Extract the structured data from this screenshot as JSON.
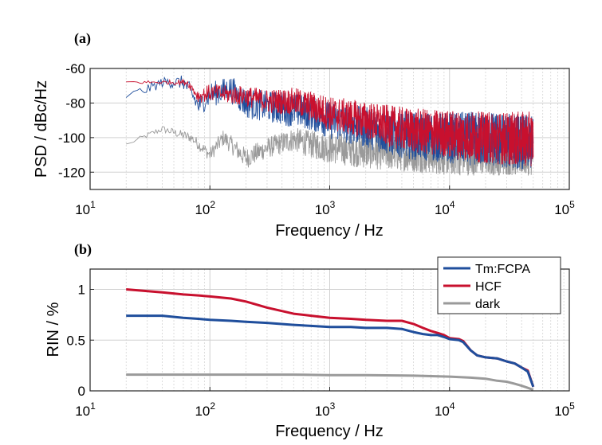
{
  "colors": {
    "tm_fcpa": "#1f4e9c",
    "hcf": "#c8102e",
    "dark": "#9a9a9a"
  },
  "chart_data": [
    {
      "panel": "(a)",
      "type": "line",
      "xscale": "log",
      "xlabel": "Frequency / Hz",
      "ylabel": "PSD / dBc/Hz",
      "xlim": [
        10,
        100000
      ],
      "ylim": [
        -130,
        -60
      ],
      "xticks": [
        {
          "base": "10",
          "exp": "1"
        },
        {
          "base": "10",
          "exp": "2"
        },
        {
          "base": "10",
          "exp": "3"
        },
        {
          "base": "10",
          "exp": "4"
        },
        {
          "base": "10",
          "exp": "5"
        }
      ],
      "yticks": [
        "-60",
        "-80",
        "-100",
        "-120"
      ],
      "grid": true,
      "x_range": [
        20,
        50000
      ],
      "series": [
        {
          "key": "tm_fcpa",
          "color_key": "tm_fcpa",
          "envelope": [
            [
              20,
              -76
            ],
            [
              30,
              -72
            ],
            [
              40,
              -68
            ],
            [
              60,
              -68
            ],
            [
              70,
              -74
            ],
            [
              80,
              -82
            ],
            [
              100,
              -75
            ],
            [
              150,
              -72
            ],
            [
              200,
              -80
            ],
            [
              300,
              -82
            ],
            [
              400,
              -83
            ],
            [
              500,
              -84
            ],
            [
              700,
              -86
            ],
            [
              1000,
              -90
            ],
            [
              2000,
              -94
            ],
            [
              3000,
              -97
            ],
            [
              5000,
              -99
            ],
            [
              10000,
              -100
            ],
            [
              20000,
              -101
            ],
            [
              50000,
              -103
            ]
          ],
          "spread": [
            2,
            3,
            3,
            4,
            5,
            6,
            7,
            8,
            9,
            9,
            10,
            10,
            10,
            11,
            12,
            13,
            14,
            15,
            16,
            16
          ]
        },
        {
          "key": "hcf",
          "color_key": "hcf",
          "envelope": [
            [
              20,
              -68
            ],
            [
              40,
              -68
            ],
            [
              65,
              -68
            ],
            [
              80,
              -76
            ],
            [
              100,
              -74
            ],
            [
              200,
              -76
            ],
            [
              300,
              -79
            ],
            [
              500,
              -79
            ],
            [
              700,
              -82
            ],
            [
              1000,
              -86
            ],
            [
              2000,
              -90
            ],
            [
              3000,
              -93
            ],
            [
              5000,
              -96
            ],
            [
              10000,
              -98
            ],
            [
              20000,
              -100
            ],
            [
              50000,
              -101
            ]
          ],
          "spread": [
            1,
            1,
            2,
            4,
            5,
            6,
            7,
            8,
            9,
            10,
            11,
            12,
            13,
            14,
            15,
            16
          ]
        },
        {
          "key": "dark",
          "color_key": "dark",
          "envelope": [
            [
              20,
              -104
            ],
            [
              40,
              -95
            ],
            [
              70,
              -100
            ],
            [
              100,
              -110
            ],
            [
              130,
              -100
            ],
            [
              200,
              -112
            ],
            [
              300,
              -106
            ],
            [
              500,
              -101
            ],
            [
              700,
              -104
            ],
            [
              1000,
              -106
            ],
            [
              2000,
              -108
            ],
            [
              5000,
              -109
            ],
            [
              10000,
              -110
            ],
            [
              20000,
              -110
            ],
            [
              50000,
              -110
            ]
          ],
          "spread": [
            1,
            2,
            3,
            4,
            5,
            6,
            6,
            7,
            8,
            9,
            10,
            11,
            12,
            12,
            12
          ]
        }
      ]
    },
    {
      "panel": "(b)",
      "type": "line",
      "xscale": "log",
      "xlabel": "Frequency / Hz",
      "ylabel": "RIN / %",
      "xlim": [
        10,
        100000
      ],
      "ylim": [
        0,
        1.2
      ],
      "xticks": [
        {
          "base": "10",
          "exp": "1"
        },
        {
          "base": "10",
          "exp": "2"
        },
        {
          "base": "10",
          "exp": "3"
        },
        {
          "base": "10",
          "exp": "4"
        },
        {
          "base": "10",
          "exp": "5"
        }
      ],
      "yticks": [
        "0",
        "0.5",
        "1"
      ],
      "ytick_values": [
        0,
        0.5,
        1
      ],
      "grid": true,
      "legend_position": "top-right",
      "series": [
        {
          "key": "tm_fcpa",
          "name": "Tm:FCPA",
          "color_key": "tm_fcpa",
          "x": [
            20,
            40,
            60,
            80,
            100,
            150,
            200,
            300,
            500,
            700,
            1000,
            1500,
            2000,
            3000,
            4000,
            5000,
            6000,
            7000,
            8000,
            9000,
            10000,
            12000,
            13000,
            15000,
            17000,
            20000,
            25000,
            30000,
            35000,
            40000,
            45000,
            50000
          ],
          "y": [
            0.74,
            0.74,
            0.72,
            0.71,
            0.7,
            0.69,
            0.68,
            0.67,
            0.65,
            0.64,
            0.63,
            0.63,
            0.62,
            0.62,
            0.61,
            0.58,
            0.56,
            0.55,
            0.55,
            0.53,
            0.51,
            0.5,
            0.48,
            0.4,
            0.35,
            0.33,
            0.32,
            0.29,
            0.27,
            0.23,
            0.19,
            0.04
          ]
        },
        {
          "key": "hcf",
          "name": "HCF",
          "color_key": "hcf",
          "x": [
            20,
            40,
            60,
            80,
            100,
            150,
            200,
            300,
            500,
            700,
            1000,
            1500,
            2000,
            3000,
            4000,
            5000,
            6000,
            7000,
            8000,
            9000,
            10000,
            12000,
            13000,
            15000,
            17000,
            20000,
            25000,
            30000,
            35000,
            40000,
            45000,
            50000
          ],
          "y": [
            1.0,
            0.97,
            0.95,
            0.94,
            0.93,
            0.91,
            0.88,
            0.82,
            0.76,
            0.74,
            0.72,
            0.71,
            0.7,
            0.69,
            0.69,
            0.66,
            0.62,
            0.59,
            0.57,
            0.55,
            0.52,
            0.51,
            0.49,
            0.4,
            0.35,
            0.33,
            0.32,
            0.29,
            0.27,
            0.23,
            0.2,
            0.04
          ]
        },
        {
          "key": "dark",
          "name": "dark",
          "color_key": "dark",
          "x": [
            20,
            50,
            100,
            200,
            500,
            1000,
            2000,
            5000,
            10000,
            15000,
            20000,
            25000,
            30000,
            35000,
            40000,
            45000,
            50000
          ],
          "y": [
            0.16,
            0.16,
            0.16,
            0.16,
            0.16,
            0.155,
            0.155,
            0.15,
            0.14,
            0.13,
            0.12,
            0.1,
            0.09,
            0.07,
            0.05,
            0.03,
            0.01
          ]
        }
      ]
    }
  ]
}
